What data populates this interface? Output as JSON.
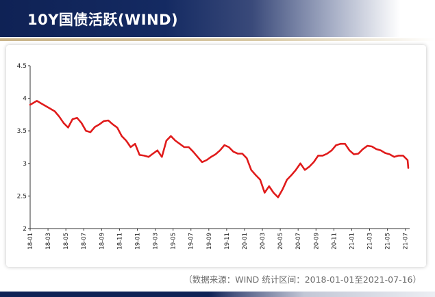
{
  "header": {
    "title": "10Y国债活跃(WIND)"
  },
  "footer": {
    "source": "（数据来源：WIND 统计区间：2018-01-01至2021-07-16）"
  },
  "colors": {
    "navy": "#0f2255",
    "line": "#e01b1b",
    "gold": "#c9b48a"
  },
  "chart_data": {
    "type": "line",
    "title": "",
    "xlabel": "",
    "ylabel": "",
    "ylim": [
      2,
      4.5
    ],
    "yticks": [
      "4.5",
      "4",
      "3.5",
      "3",
      "2.5",
      "2"
    ],
    "xticks": [
      "18-01",
      "18-03",
      "18-05",
      "18-07",
      "18-09",
      "18-11",
      "19-01",
      "19-03",
      "19-05",
      "19-07",
      "19-09",
      "19-11",
      "20-01",
      "20-03",
      "20-05",
      "20-07",
      "20-09",
      "20-11",
      "21-01",
      "21-03",
      "21-05",
      "21-07"
    ],
    "grid": false,
    "legend": "none",
    "series": [
      {
        "x": [
          "18-01",
          "18-01",
          "18-02",
          "18-02",
          "18-03",
          "18-03",
          "18-04",
          "18-04",
          "18-05",
          "18-05",
          "18-06",
          "18-06",
          "18-07",
          "18-07",
          "18-08",
          "18-08",
          "18-09",
          "18-09",
          "18-10",
          "18-10",
          "18-11",
          "18-11",
          "18-12",
          "18-12",
          "19-01",
          "19-01",
          "19-02",
          "19-02",
          "19-03",
          "19-03",
          "19-04",
          "19-04",
          "19-05",
          "19-05",
          "19-06",
          "19-06",
          "19-07",
          "19-07",
          "19-08",
          "19-08",
          "19-09",
          "19-09",
          "19-10",
          "19-10",
          "19-11",
          "19-11",
          "19-12",
          "19-12",
          "20-01",
          "20-01",
          "20-02",
          "20-02",
          "20-03",
          "20-03",
          "20-04",
          "20-04",
          "20-05",
          "20-05",
          "20-06",
          "20-06",
          "20-07",
          "20-07",
          "20-08",
          "20-08",
          "20-09",
          "20-09",
          "20-10",
          "20-10",
          "20-11",
          "20-11",
          "20-12",
          "20-12",
          "21-01",
          "21-01",
          "21-02",
          "21-02",
          "21-03",
          "21-03",
          "21-04",
          "21-04",
          "21-05",
          "21-05",
          "21-06",
          "21-06",
          "21-07",
          "21-07"
        ],
        "values": [
          3.9,
          3.96,
          3.92,
          3.88,
          3.84,
          3.8,
          3.72,
          3.62,
          3.55,
          3.68,
          3.7,
          3.62,
          3.5,
          3.48,
          3.56,
          3.6,
          3.65,
          3.66,
          3.6,
          3.55,
          3.42,
          3.35,
          3.25,
          3.3,
          3.13,
          3.12,
          3.1,
          3.15,
          3.2,
          3.1,
          3.35,
          3.42,
          3.35,
          3.3,
          3.25,
          3.25,
          3.18,
          3.1,
          3.02,
          3.05,
          3.1,
          3.14,
          3.2,
          3.28,
          3.25,
          3.18,
          3.15,
          3.15,
          3.08,
          2.9,
          2.82,
          2.75,
          2.55,
          2.65,
          2.55,
          2.48,
          2.6,
          2.75,
          2.82,
          2.9,
          3.0,
          2.9,
          2.95,
          3.02,
          3.12,
          3.12,
          3.15,
          3.2,
          3.28,
          3.3,
          3.3,
          3.2,
          3.14,
          3.15,
          3.22,
          3.27,
          3.26,
          3.22,
          3.2,
          3.16,
          3.14,
          3.1,
          3.12,
          3.12,
          3.05,
          2.93
        ]
      }
    ]
  }
}
